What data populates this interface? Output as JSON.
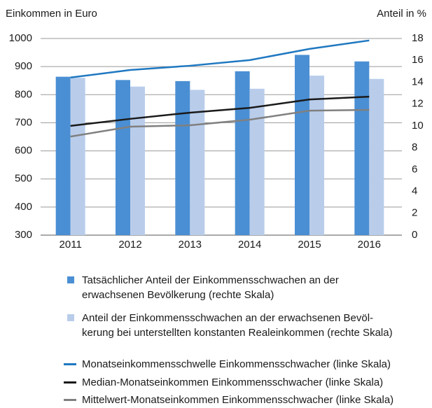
{
  "chart_data": {
    "type": "bar-line",
    "ylabel": "Einkommen in Euro",
    "y2label": "Anteil in %",
    "categories": [
      "2011",
      "2012",
      "2013",
      "2014",
      "2015",
      "2016"
    ],
    "ylim": [
      300,
      1000
    ],
    "yticks": [
      300,
      400,
      500,
      600,
      700,
      800,
      900,
      1000
    ],
    "y2lim": [
      0,
      18
    ],
    "y2ticks": [
      0,
      2,
      4,
      6,
      8,
      10,
      12,
      14,
      16,
      18
    ],
    "grid": true,
    "series": [
      {
        "name": "Tatsächlicher Anteil der Einkommensschwachen an der\nerwachsenen Bevölkerung (rechte Skala)",
        "type": "bar",
        "axis": "y2",
        "color": "#4a8fd4",
        "values": [
          14.5,
          14.2,
          14.1,
          15.0,
          16.5,
          15.9
        ]
      },
      {
        "name": "Anteil der Einkommensschwachen an der erwachsenen Bevöl-\nkerung bei unterstellten konstanten Realeinkommen (rechte Skala)",
        "type": "bar",
        "axis": "y2",
        "color": "#b9cdeb",
        "values": [
          14.4,
          13.6,
          13.3,
          13.4,
          14.6,
          14.3
        ]
      },
      {
        "name": "Monatseinkommensschwelle Einkommensschwacher (linke Skala)",
        "type": "line",
        "color": "#1f78c1",
        "values": [
          861,
          888,
          903,
          923,
          963,
          993
        ]
      },
      {
        "name": "Median-Monatseinkommen Einkommensschwacher (linke Skala)",
        "type": "line",
        "color": "#1a1a1a",
        "values": [
          689,
          714,
          736,
          753,
          783,
          793
        ]
      },
      {
        "name": "Mittelwert-Monatseinkommen Einkommensschwacher (linke Skala)",
        "type": "line",
        "color": "#808080",
        "values": [
          651,
          686,
          691,
          711,
          743,
          746
        ]
      }
    ]
  }
}
